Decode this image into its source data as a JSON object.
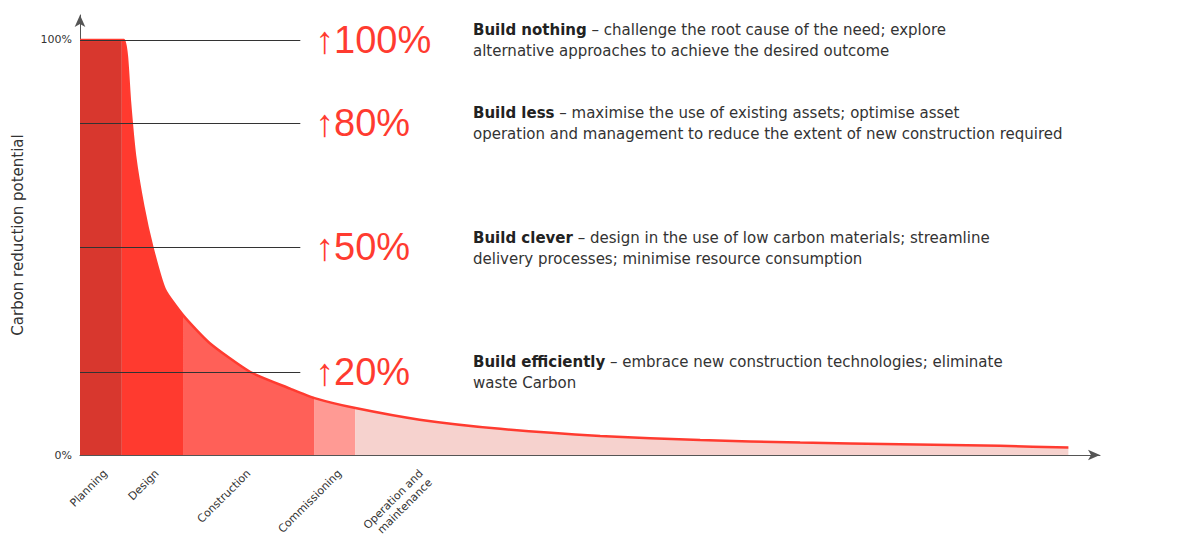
{
  "chart_data": {
    "type": "area",
    "ylabel": "Carbon reduction potential",
    "xlim": [
      0,
      100
    ],
    "ylim": [
      0,
      106
    ],
    "yticks": [
      {
        "value": 0,
        "label": "0%"
      },
      {
        "value": 100,
        "label": "100%"
      }
    ],
    "tick_labels": "y",
    "color": "#ff3b30",
    "x": [
      0,
      4.1,
      4.3,
      4.6,
      4.9,
      5.4,
      6.2,
      7.1,
      8.3,
      10.1,
      12.7,
      16.7,
      20.6,
      23,
      27,
      33.3,
      41.2,
      51,
      60.8,
      70.6,
      80.4,
      90.2,
      96.9
    ],
    "values": [
      100,
      100,
      100,
      96,
      85,
      72,
      60,
      50,
      40,
      33.7,
      27,
      20,
      16,
      13.7,
      11.3,
      8.5,
      6.3,
      4.6,
      3.6,
      3.0,
      2.6,
      2.2,
      1.8
    ],
    "phases": [
      {
        "name": "Planning",
        "start": 0,
        "end": 4.1,
        "color": "#d8372e"
      },
      {
        "name": "Design",
        "start": 4.1,
        "end": 10.1,
        "color": "#ff3a2f"
      },
      {
        "name": "Construction",
        "start": 10.1,
        "end": 23,
        "color": "#ff6058"
      },
      {
        "name": "Commissioning",
        "start": 23,
        "end": 27,
        "color": "#ff9a94"
      },
      {
        "name": "Operation and\nmaintenance",
        "start": 27,
        "end": 96.9,
        "color": "#f6d2ce"
      }
    ],
    "annotations": [
      {
        "value": 100,
        "label": "↑100%",
        "title": "Build nothing",
        "lines": [
          "– challenge the root cause of the need; explore",
          "alternative approaches to achieve the desired outcome"
        ]
      },
      {
        "value": 80,
        "label": "↑80%",
        "title": "Build less",
        "lines": [
          "– maximise the use of existing assets; optimise asset",
          "operation and management to reduce the extent of new construction required"
        ]
      },
      {
        "value": 50,
        "label": "↑50%",
        "title": "Build clever",
        "lines": [
          "– design in the use of low carbon materials; streamline",
          "delivery processes; minimise resource consumption"
        ]
      },
      {
        "value": 20,
        "label": "↑20%",
        "title": "Build efficiently",
        "lines": [
          "– embrace new construction technologies; eliminate",
          "waste Carbon"
        ]
      }
    ]
  }
}
